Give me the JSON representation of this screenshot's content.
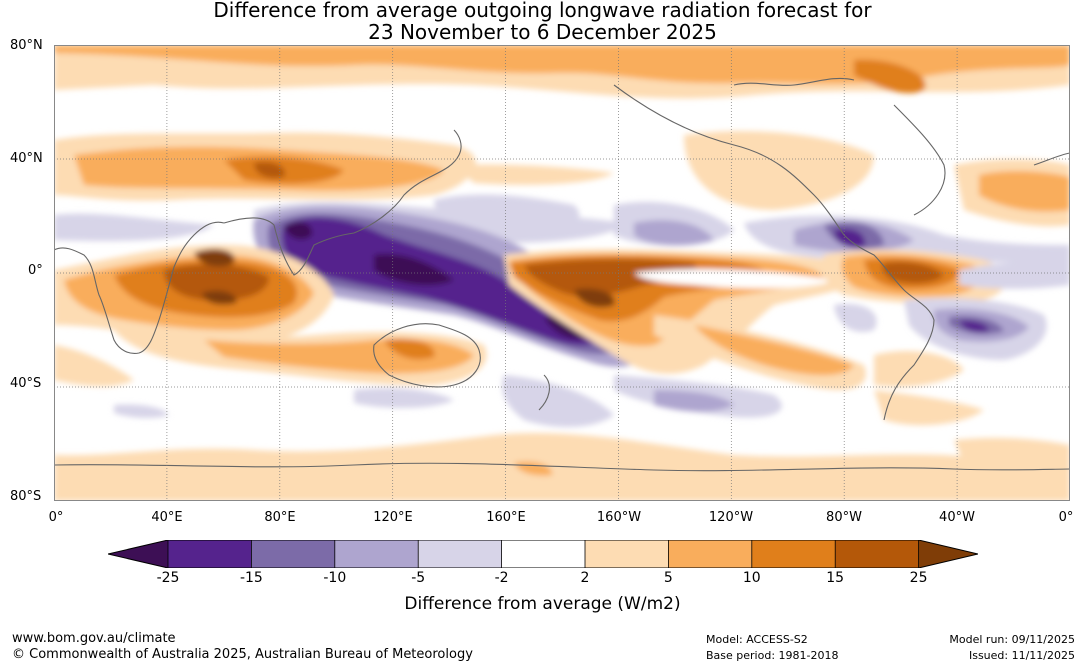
{
  "title": {
    "line1": "Difference from average outgoing longwave radiation forecast for",
    "line2": "23 November to 6 December 2025"
  },
  "map": {
    "lat_labels": [
      "80°N",
      "40°N",
      "0°",
      "40°S",
      "80°S"
    ],
    "lon_labels": [
      "0°",
      "40°E",
      "80°E",
      "120°E",
      "160°E",
      "160°W",
      "120°W",
      "80°W",
      "40°W",
      "0°"
    ]
  },
  "legend": {
    "tick_labels": [
      "-25",
      "-15",
      "-10",
      "-5",
      "-2",
      "2",
      "5",
      "10",
      "15",
      "25"
    ],
    "colors": [
      "#3d0f55",
      "#55238d",
      "#7c6ba8",
      "#aea5cf",
      "#d7d4e8",
      "#ffffff",
      "#fddcb3",
      "#f9ad5c",
      "#e07f1b",
      "#b45809",
      "#7f3d07"
    ],
    "label": "Difference from average (W/m2)"
  },
  "footer": {
    "website": "www.bom.gov.au/climate",
    "copyright": "© Commonwealth of Australia 2025, Australian Bureau of Meteorology",
    "model": "Model: ACCESS-S2",
    "base_period": "Base period: 1981-2018",
    "model_run": "Model run: 09/11/2025",
    "issued": "Issued: 11/11/2025"
  }
}
